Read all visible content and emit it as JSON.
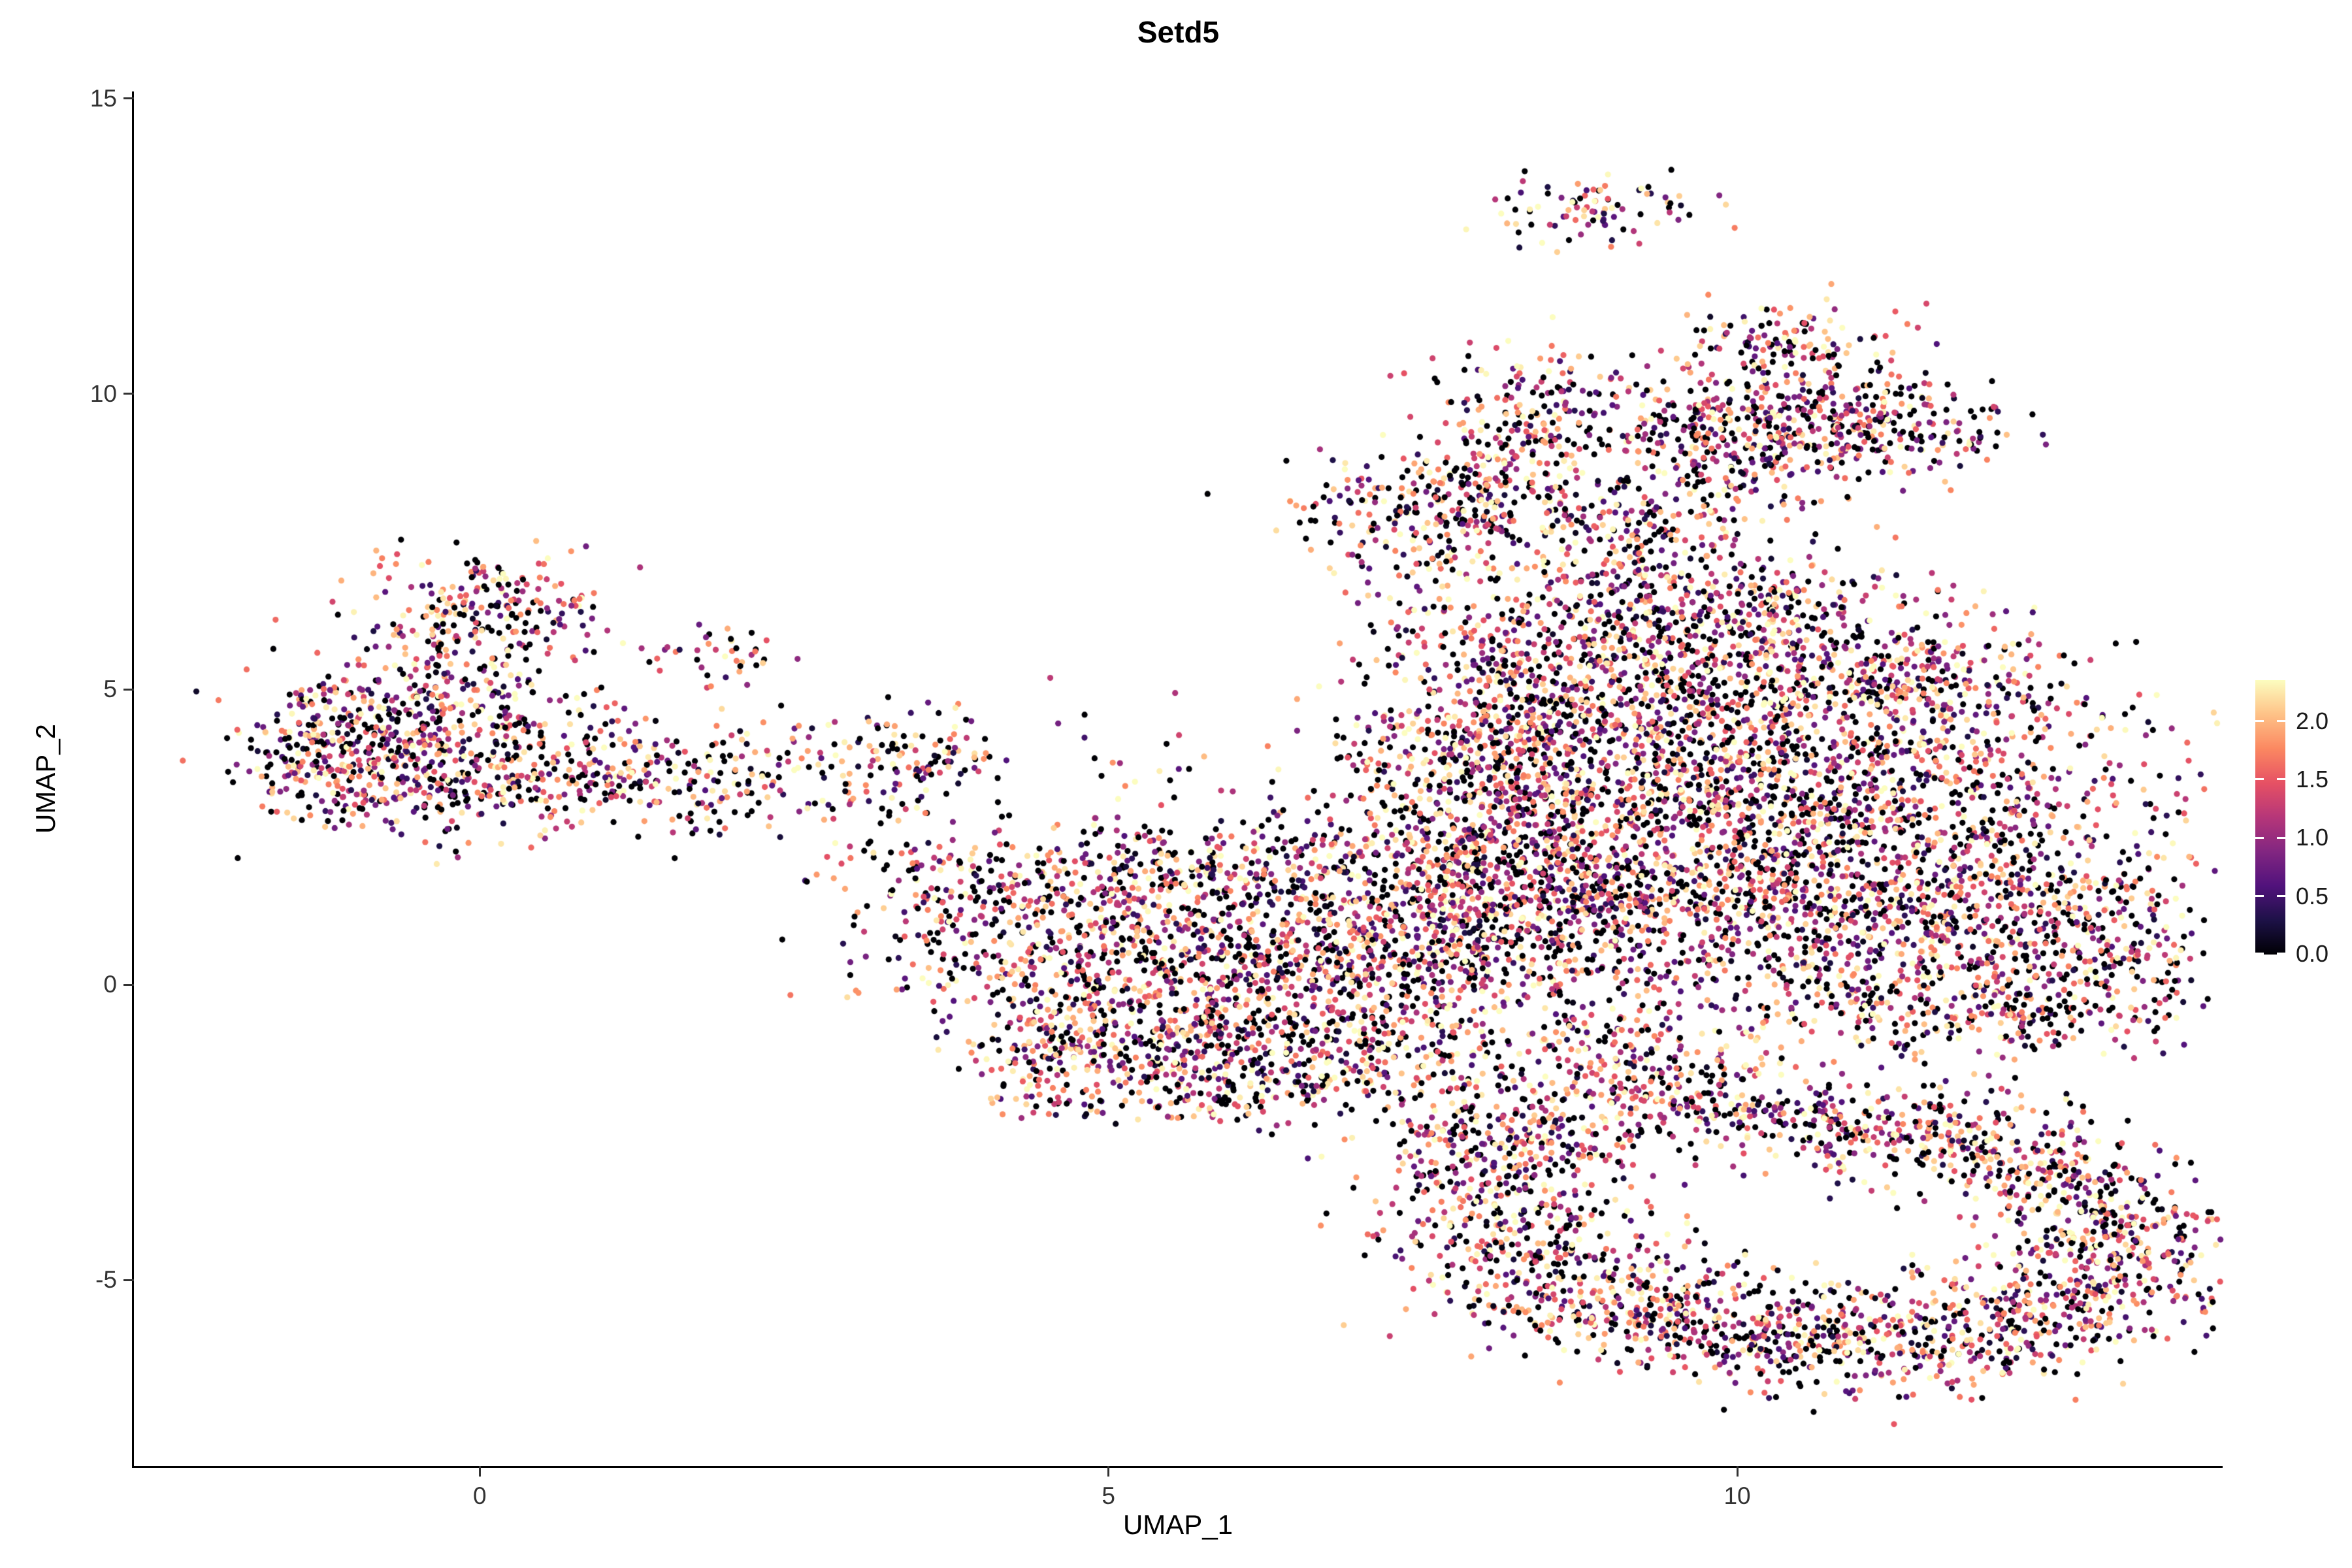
{
  "title": "Setd5",
  "axes": {
    "x": {
      "label": "UMAP_1",
      "ticks": [
        {
          "v": 0,
          "label": "0"
        },
        {
          "v": 5,
          "label": "5"
        },
        {
          "v": 10,
          "label": "10"
        }
      ]
    },
    "y": {
      "label": "UMAP_2",
      "ticks": [
        {
          "v": -5,
          "label": "-5"
        },
        {
          "v": 0,
          "label": "0"
        },
        {
          "v": 5,
          "label": "5"
        },
        {
          "v": 10,
          "label": "10"
        },
        {
          "v": 15,
          "label": "15"
        }
      ]
    }
  },
  "legend": {
    "ticks": [
      {
        "v": 2.0,
        "label": "2.0"
      },
      {
        "v": 1.5,
        "label": "1.5"
      },
      {
        "v": 1.0,
        "label": "1.0"
      },
      {
        "v": 0.5,
        "label": "0.5"
      },
      {
        "v": 0.0,
        "label": "0.0"
      }
    ]
  },
  "colors": {
    "background": "#ffffff",
    "axis_line": "#000000",
    "tick_text": "#333333",
    "title_text": "#000000",
    "magma_stops": [
      [
        0.0,
        "#000004"
      ],
      [
        0.125,
        "#1d1147"
      ],
      [
        0.25,
        "#51127c"
      ],
      [
        0.375,
        "#822681"
      ],
      [
        0.5,
        "#b63679"
      ],
      [
        0.625,
        "#e65164"
      ],
      [
        0.75,
        "#fb8861"
      ],
      [
        0.875,
        "#fec287"
      ],
      [
        1.0,
        "#fcfdbf"
      ]
    ]
  },
  "chart_data": {
    "type": "scatter",
    "title": "Setd5",
    "xlabel": "UMAP_1",
    "ylabel": "UMAP_2",
    "xlim": [
      -2.75,
      13.86
    ],
    "ylim": [
      -8.15,
      15.12
    ],
    "x_ticks": [
      0,
      5,
      10
    ],
    "y_ticks": [
      -5,
      0,
      5,
      10,
      15
    ],
    "grid": false,
    "legend_position": "right",
    "color_scale": "magma",
    "value_min": 0,
    "value_max": 2.35,
    "zero_fraction": 0.26,
    "value_power": 0.8,
    "value_scale": 2.5,
    "point_radius": 4.6,
    "seed": 20240501,
    "clusters": [
      [
        -1.0,
        4.2,
        0.45,
        0.55,
        260
      ],
      [
        -0.2,
        4.9,
        0.55,
        0.75,
        300
      ],
      [
        0.1,
        6.5,
        0.45,
        0.45,
        170
      ],
      [
        0.5,
        3.6,
        0.7,
        0.5,
        240
      ],
      [
        -0.6,
        3.2,
        0.5,
        0.35,
        120
      ],
      [
        -1.3,
        3.6,
        0.3,
        0.35,
        80
      ],
      [
        1.6,
        3.4,
        0.6,
        0.4,
        130
      ],
      [
        1.9,
        5.6,
        0.3,
        0.25,
        40
      ],
      [
        2.7,
        3.7,
        0.55,
        0.45,
        90
      ],
      [
        3.5,
        3.9,
        0.4,
        0.45,
        80
      ],
      [
        3.7,
        1.8,
        0.35,
        0.55,
        90
      ],
      [
        4.2,
        0.7,
        0.5,
        0.8,
        160
      ],
      [
        4.9,
        1.6,
        0.5,
        0.6,
        150
      ],
      [
        5.7,
        1.9,
        0.6,
        0.5,
        170
      ],
      [
        6.7,
        2.0,
        0.6,
        0.5,
        160
      ],
      [
        5.4,
        0.4,
        0.7,
        0.6,
        300
      ],
      [
        6.5,
        0.5,
        0.7,
        0.6,
        320
      ],
      [
        7.4,
        0.8,
        0.6,
        0.7,
        280
      ],
      [
        5.0,
        -0.9,
        0.6,
        0.5,
        220
      ],
      [
        6.0,
        -1.0,
        0.7,
        0.5,
        260
      ],
      [
        7.0,
        -1.2,
        0.6,
        0.5,
        220
      ],
      [
        5.6,
        -1.9,
        0.5,
        0.3,
        90
      ],
      [
        4.45,
        -1.6,
        0.3,
        0.45,
        60
      ],
      [
        8.6,
        2.8,
        0.8,
        1.0,
        500
      ],
      [
        9.6,
        3.6,
        0.9,
        1.0,
        550
      ],
      [
        10.6,
        2.5,
        0.9,
        1.0,
        550
      ],
      [
        9.8,
        1.2,
        0.9,
        0.8,
        450
      ],
      [
        8.4,
        1.0,
        0.7,
        0.8,
        350
      ],
      [
        11.6,
        1.2,
        0.8,
        0.8,
        350
      ],
      [
        12.5,
        1.8,
        0.6,
        0.8,
        250
      ],
      [
        12.9,
        0.6,
        0.5,
        0.6,
        160
      ],
      [
        11.9,
        3.9,
        0.8,
        0.7,
        300
      ],
      [
        10.3,
        5.2,
        0.9,
        0.7,
        400
      ],
      [
        8.9,
        5.0,
        0.7,
        0.7,
        300
      ],
      [
        11.3,
        5.3,
        0.6,
        0.6,
        200
      ],
      [
        9.0,
        6.3,
        0.6,
        0.5,
        180
      ],
      [
        10.2,
        6.4,
        0.6,
        0.5,
        180
      ],
      [
        8.0,
        6.0,
        0.5,
        0.8,
        150
      ],
      [
        8.1,
        4.0,
        0.5,
        0.7,
        220
      ],
      [
        7.9,
        2.0,
        0.5,
        0.8,
        250
      ],
      [
        11.0,
        -0.3,
        0.7,
        0.5,
        200
      ],
      [
        12.3,
        -0.5,
        0.6,
        0.4,
        150
      ],
      [
        9.0,
        -0.8,
        0.8,
        0.5,
        120
      ],
      [
        7.4,
        3.6,
        0.45,
        1.0,
        90
      ],
      [
        7.4,
        7.9,
        0.55,
        0.55,
        200
      ],
      [
        8.2,
        8.4,
        0.4,
        0.5,
        130
      ],
      [
        8.3,
        9.7,
        0.4,
        0.6,
        170
      ],
      [
        9.1,
        7.6,
        0.6,
        0.6,
        220
      ],
      [
        9.9,
        8.4,
        0.5,
        0.5,
        100
      ],
      [
        10.5,
        9.6,
        0.7,
        0.5,
        300
      ],
      [
        11.2,
        9.4,
        0.5,
        0.4,
        150
      ],
      [
        9.7,
        9.5,
        0.4,
        0.4,
        120
      ],
      [
        10.4,
        10.9,
        0.45,
        0.35,
        130
      ],
      [
        8.9,
        13.1,
        0.42,
        0.28,
        90
      ],
      [
        8.4,
        -2.6,
        0.55,
        0.5,
        180
      ],
      [
        8.1,
        -3.6,
        0.5,
        0.6,
        200
      ],
      [
        8.4,
        -4.7,
        0.55,
        0.55,
        220
      ],
      [
        9.2,
        -5.4,
        0.6,
        0.5,
        230
      ],
      [
        10.2,
        -5.9,
        0.7,
        0.45,
        250
      ],
      [
        11.3,
        -6.1,
        0.7,
        0.45,
        240
      ],
      [
        12.3,
        -5.6,
        0.6,
        0.5,
        230
      ],
      [
        12.9,
        -4.8,
        0.5,
        0.5,
        200
      ],
      [
        13.0,
        -3.9,
        0.45,
        0.45,
        170
      ],
      [
        12.4,
        -3.1,
        0.55,
        0.45,
        180
      ],
      [
        11.6,
        -2.6,
        0.6,
        0.4,
        170
      ],
      [
        10.7,
        -2.3,
        0.6,
        0.35,
        140
      ],
      [
        9.7,
        -2.1,
        0.5,
        0.35,
        120
      ],
      [
        9.3,
        -1.5,
        0.5,
        0.4,
        80
      ],
      [
        7.8,
        -2.2,
        0.4,
        0.4,
        70
      ],
      [
        5.5,
        3.2,
        1.2,
        0.8,
        40
      ],
      [
        8.8,
        -1.4,
        1.0,
        0.4,
        50
      ],
      [
        3.2,
        1.2,
        0.5,
        0.9,
        40
      ]
    ]
  }
}
